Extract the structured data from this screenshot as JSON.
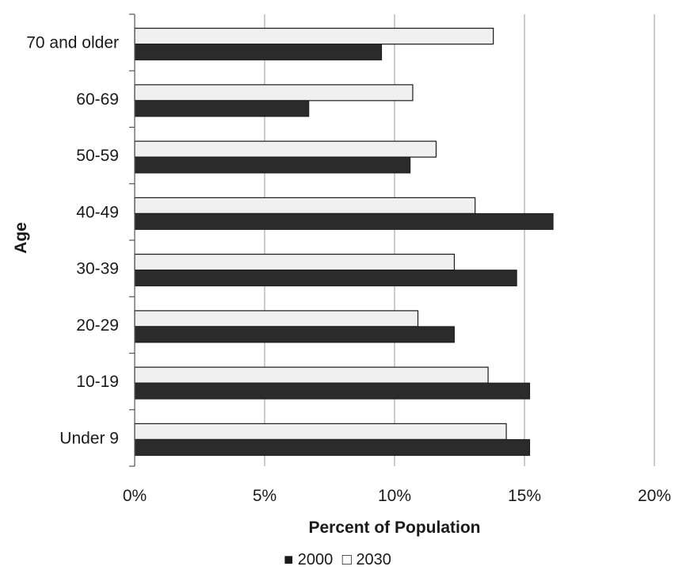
{
  "chart_data": {
    "type": "bar",
    "orientation": "horizontal",
    "title": "",
    "xlabel": "Percent of Population",
    "ylabel": "Age",
    "categories": [
      "70 and older",
      "60-69",
      "50-59",
      "40-49",
      "30-39",
      "20-29",
      "10-19",
      "Under 9"
    ],
    "series": [
      {
        "name": "2000",
        "color": "#2b2b2b",
        "values": [
          9.5,
          6.7,
          10.6,
          16.1,
          14.7,
          12.3,
          15.2,
          15.2
        ]
      },
      {
        "name": "2030",
        "color": "#f0f0f0",
        "values": [
          13.8,
          10.7,
          11.6,
          13.1,
          12.3,
          10.9,
          13.6,
          14.3
        ]
      }
    ],
    "xlim": [
      0,
      20
    ],
    "xticks": [
      "0%",
      "5%",
      "10%",
      "15%",
      "20%"
    ],
    "grid": true,
    "legend_position": "bottom-center",
    "legend_markers": [
      "■",
      "□"
    ]
  }
}
